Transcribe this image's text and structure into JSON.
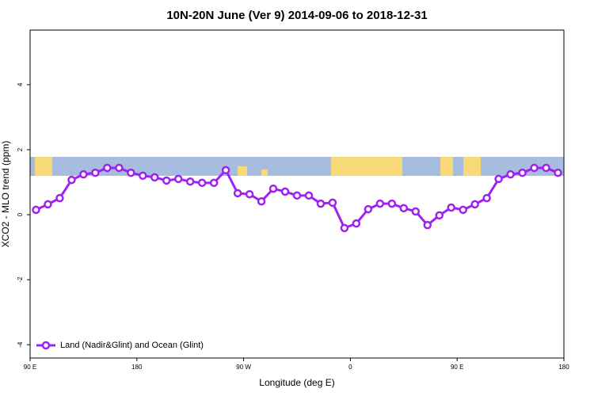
{
  "chart_data": {
    "type": "line",
    "title": "10N-20N June (Ver 9)   2014-09-06 to 2018-12-31",
    "x_label": "Longitude (deg E)",
    "y_label": "XCO2 - MLO trend (ppm)",
    "xlim": [
      90,
      540
    ],
    "ylim": [
      -4.41,
      5.68
    ],
    "xticks": [
      {
        "value": 90,
        "label": "90 E"
      },
      180,
      {
        "value": 270,
        "label": "90 W"
      },
      {
        "value": 360,
        "label": "0"
      },
      {
        "value": 450,
        "label": "90 E"
      },
      {
        "value": 540,
        "label": "180"
      }
    ],
    "yticks": [
      -4,
      -2,
      0,
      2,
      4
    ],
    "legend": "bottomleft",
    "series": [
      {
        "name": "Land (Nadir&Glint) and Ocean (Glint)",
        "color": "#a020f0",
        "x": [
          95,
          105,
          115,
          125,
          135,
          145,
          155,
          165,
          175,
          185,
          195,
          205,
          215,
          225,
          235,
          245,
          255,
          265,
          275,
          285,
          295,
          305,
          315,
          325,
          335,
          345,
          355,
          365,
          375,
          385,
          395,
          405,
          415,
          425,
          435,
          445,
          455,
          465,
          475,
          485,
          495,
          505,
          515,
          525,
          535
        ],
        "values": [
          0.15,
          0.32,
          0.51,
          1.07,
          1.24,
          1.29,
          1.44,
          1.44,
          1.29,
          1.2,
          1.15,
          1.05,
          1.1,
          1.02,
          0.98,
          0.98,
          1.37,
          0.66,
          0.63,
          0.41,
          0.8,
          0.71,
          0.59,
          0.59,
          0.34,
          0.37,
          -0.41,
          -0.27,
          0.17,
          0.34,
          0.34,
          0.2,
          0.1,
          -0.32,
          -0.02,
          0.22,
          0.15,
          0.32,
          0.51,
          1.1,
          1.24,
          1.29,
          1.44,
          1.44,
          1.29
        ]
      }
    ]
  }
}
